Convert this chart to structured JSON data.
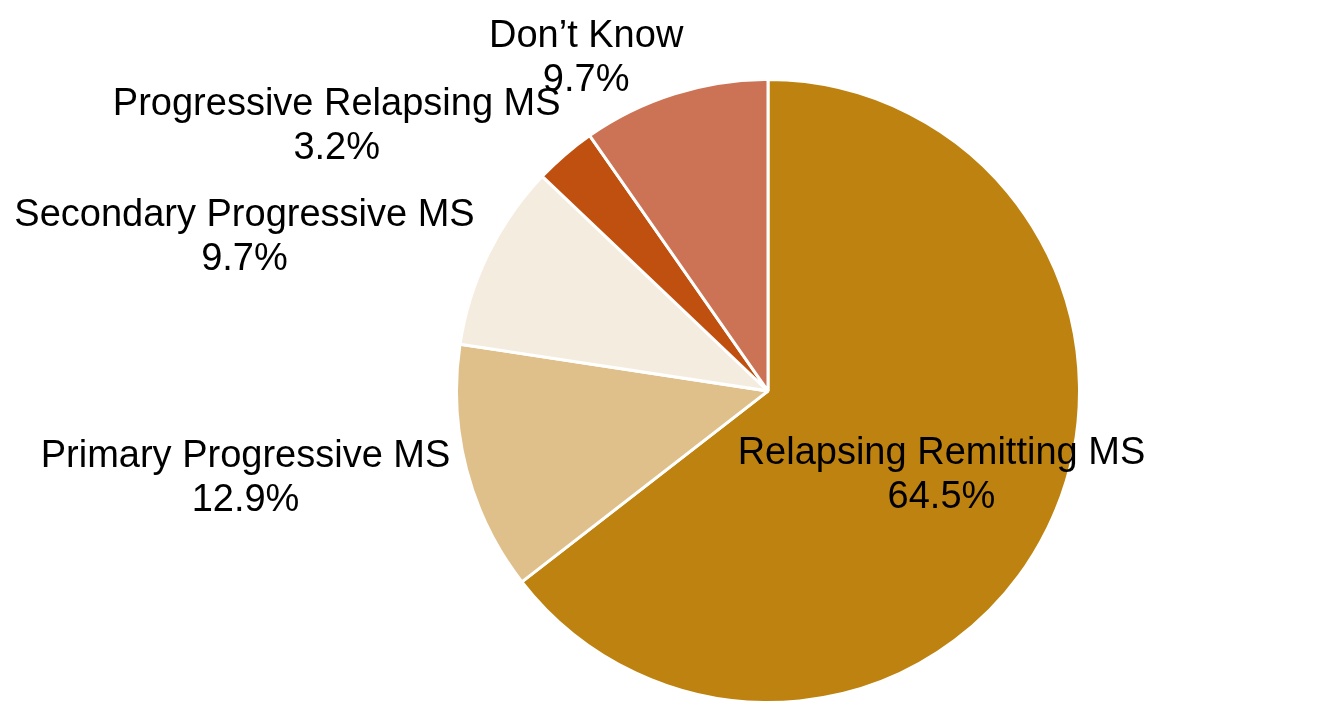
{
  "chart_data": {
    "type": "pie",
    "categories": [
      "Relapsing Remitting MS",
      "Primary Progressive MS",
      "Secondary Progressive MS",
      "Progressive Relapsing MS",
      "Don’t Know"
    ],
    "values": [
      64.5,
      12.9,
      9.7,
      3.2,
      9.7
    ],
    "value_labels": [
      "64.5%",
      "12.9%",
      "9.7%",
      "3.2%",
      "9.7%"
    ],
    "colors": [
      "#be8210",
      "#dfc08a",
      "#f4ecdf",
      "#bf5010",
      "#cd7355"
    ],
    "legend": false
  }
}
